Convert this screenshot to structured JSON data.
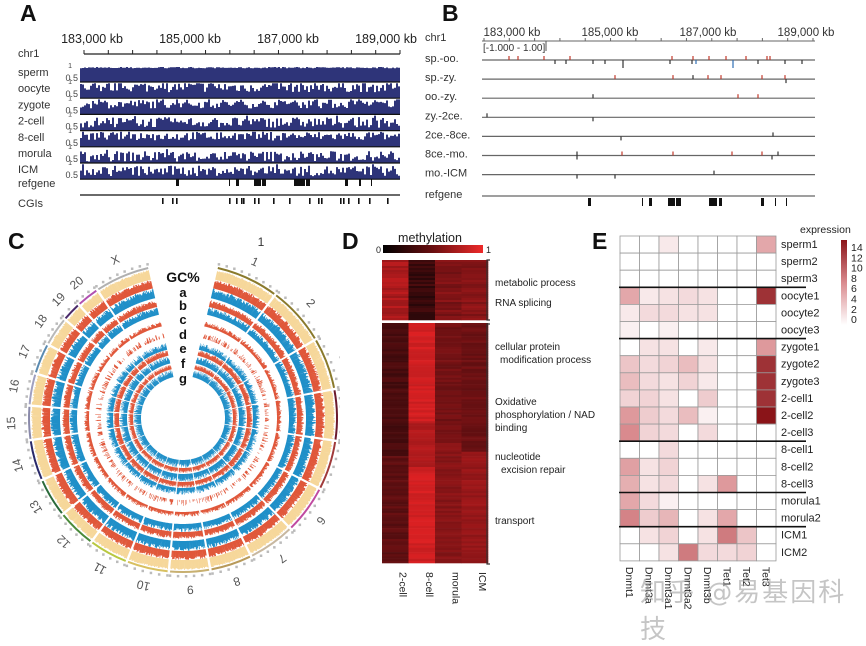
{
  "panels": {
    "A": {
      "letter": "A",
      "chrom": "chr1",
      "axis_ticks": [
        "183,000 kb",
        "185,000 kb",
        "187,000 kb",
        "189,000 kb"
      ],
      "ytick_hi": "1",
      "ytick_mid": "0.5",
      "tracks": [
        "sperm",
        "oocyte",
        "zygote",
        "2-cell",
        "8-cell",
        "morula",
        "ICM"
      ],
      "annot_tracks": [
        "refgene",
        "CGIs"
      ]
    },
    "B": {
      "letter": "B",
      "chrom": "chr1",
      "axis_ticks": [
        "183,000 kb",
        "185,000 kb",
        "187,000 kb",
        "189,000 kb"
      ],
      "range_label": "[-1.000 - 1.00]",
      "tracks": [
        "sp.-oo.",
        "sp.-zy.",
        "oo.-zy.",
        "zy.-2ce.",
        "2ce.-8ce.",
        "8ce.-mo.",
        "mo.-ICM"
      ],
      "annot_track": "refgene"
    },
    "C": {
      "letter": "C",
      "top_label": "1",
      "ring_labels": [
        "GC%",
        "a",
        "b",
        "c",
        "d",
        "e",
        "f",
        "g"
      ],
      "chromosomes": [
        "1",
        "2",
        "3",
        "4",
        "5",
        "6",
        "7",
        "8",
        "9",
        "10",
        "11",
        "12",
        "13",
        "14",
        "15",
        "16",
        "17",
        "18",
        "19",
        "20",
        "X"
      ],
      "colors": {
        "gc": "#f6cf8a",
        "red": "#e0573a",
        "blue": "#1f8fc8"
      }
    },
    "D": {
      "letter": "D",
      "colorbar_title": "methylation",
      "colorbar_min": "0",
      "colorbar_max": "1",
      "columns": [
        "2-cell",
        "8-cell",
        "morula",
        "ICM"
      ],
      "annotations": [
        "metabolic process",
        "RNA splicing",
        "cellular  protein",
        "modification process",
        "Oxidative",
        "phosphorylation / NAD",
        "binding",
        "nucleotide",
        "excision repair",
        "transport"
      ],
      "cluster1_means": [
        0.72,
        0.18,
        0.5,
        0.55
      ],
      "cluster2_means": [
        0.3,
        0.85,
        0.5,
        0.5
      ]
    },
    "E": {
      "letter": "E",
      "legend_title": "expression",
      "legend_ticks": [
        "14",
        "12",
        "10",
        "8",
        "6",
        "4",
        "2",
        "0"
      ],
      "genes": [
        "Dnmt1",
        "Dnmt3a",
        "Dnmt3a1",
        "Dnmt3a2",
        "Dnmt3b",
        "Tet1",
        "Tet2",
        "Tet3"
      ],
      "gene_labels": [
        "Dnmt1",
        "Dnmt3a",
        "Dnmt3a1",
        "Dnmt3a2",
        "Dnmt3b",
        "Tet1",
        "Tet2",
        "Tet3"
      ],
      "samples": [
        "sperm1",
        "sperm2",
        "sperm3",
        "oocyte1",
        "oocyte2",
        "oocyte3",
        "zygote1",
        "zygote2",
        "zygote3",
        "2-cell1",
        "2-cell2",
        "2-cell3",
        "8-cell1",
        "8-cell2",
        "8-cell3",
        "morula1",
        "morula2",
        "ICM1",
        "ICM2"
      ],
      "group_breaks_after": [
        2,
        5,
        11,
        14,
        16
      ],
      "values": [
        [
          0,
          0,
          1.5,
          0,
          0,
          0,
          0,
          6
        ],
        [
          0,
          0,
          0,
          0,
          0,
          0,
          0,
          0
        ],
        [
          0,
          0,
          0,
          0,
          0,
          0,
          0,
          0
        ],
        [
          6,
          1.5,
          2,
          2.5,
          2,
          0,
          0,
          14
        ],
        [
          1.5,
          2.5,
          2.5,
          2,
          2,
          0,
          0,
          0
        ],
        [
          1,
          0,
          1,
          0,
          0,
          0,
          0,
          0
        ],
        [
          0,
          2,
          2,
          0,
          1.5,
          0,
          0,
          7
        ],
        [
          4,
          2.5,
          3,
          4.5,
          2,
          0,
          0,
          14
        ],
        [
          4.5,
          2.5,
          2,
          3,
          1.5,
          0,
          0,
          14
        ],
        [
          3,
          3,
          2,
          0,
          3.5,
          0,
          0,
          14
        ],
        [
          7,
          3.5,
          2.5,
          4.5,
          1,
          0,
          0,
          16
        ],
        [
          8,
          3,
          2.5,
          0,
          2.5,
          0,
          0,
          0
        ],
        [
          0,
          0,
          2.5,
          0,
          0,
          0,
          0,
          0
        ],
        [
          6.5,
          2,
          3,
          0,
          0,
          0,
          0,
          0
        ],
        [
          5.5,
          2,
          2.5,
          0,
          2,
          7,
          0,
          0
        ],
        [
          6,
          2.5,
          1,
          0,
          0,
          0,
          0,
          0
        ],
        [
          8.5,
          3.5,
          5,
          0,
          2,
          6,
          0,
          0
        ],
        [
          0,
          2,
          3,
          0,
          2,
          9,
          4,
          0
        ],
        [
          0,
          0,
          2,
          9,
          2.5,
          2.5,
          3,
          0
        ]
      ],
      "vmax": 16
    }
  },
  "watermark": "知乎 @易基因科技"
}
